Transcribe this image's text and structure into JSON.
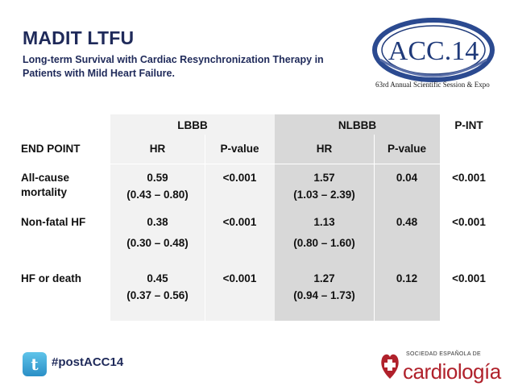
{
  "header": {
    "title": "MADIT LTFU",
    "subtitle": "Long-term Survival with Cardiac Resynchronization Therapy in Patients with Mild Heart Failure."
  },
  "acc_logo": {
    "text": "ACC.14",
    "tagline": "63rd Annual Scientific Session & Expo",
    "colors": {
      "navy": "#1f3a7a",
      "ring": "#2b4a90"
    }
  },
  "table": {
    "group_headers": {
      "lbbb": "LBBB",
      "nlbbb": "NLBBB",
      "pint": "P-INT"
    },
    "column_headers": {
      "endpoint": "END POINT",
      "lbbb_hr": "HR",
      "lbbb_p": "P-value",
      "nlbbb_hr": "HR",
      "nlbbb_p": "P-value"
    },
    "rows": [
      {
        "endpoint": "All-cause mortality",
        "endpoint_line1": "All-cause",
        "endpoint_line2": "mortality",
        "lbbb_hr": "0.59",
        "lbbb_ci": "(0.43 – 0.80)",
        "lbbb_p": "<0.001",
        "nlbbb_hr": "1.57",
        "nlbbb_ci": "(1.03 – 2.39)",
        "nlbbb_p": "0.04",
        "pint": "<0.001"
      },
      {
        "endpoint": "Non-fatal HF",
        "lbbb_hr": "0.38",
        "lbbb_ci": "(0.30 – 0.48)",
        "lbbb_p": "<0.001",
        "nlbbb_hr": "1.13",
        "nlbbb_ci": "(0.80 – 1.60)",
        "nlbbb_p": "0.48",
        "pint": "<0.001"
      },
      {
        "endpoint": "HF or death",
        "lbbb_hr": "0.45",
        "lbbb_ci": "(0.37 – 0.56)",
        "lbbb_p": "<0.001",
        "nlbbb_hr": "1.27",
        "nlbbb_ci": "(0.94 – 1.73)",
        "nlbbb_p": "0.12",
        "pint": "<0.001"
      }
    ]
  },
  "footer": {
    "hashtag": "#postACC14",
    "twitter_icon": "twitter-bird-icon",
    "sec_top": "SOCIEDAD ESPAÑOLA DE",
    "sec_name": "cardiología",
    "sec_color": "#b0212b"
  }
}
